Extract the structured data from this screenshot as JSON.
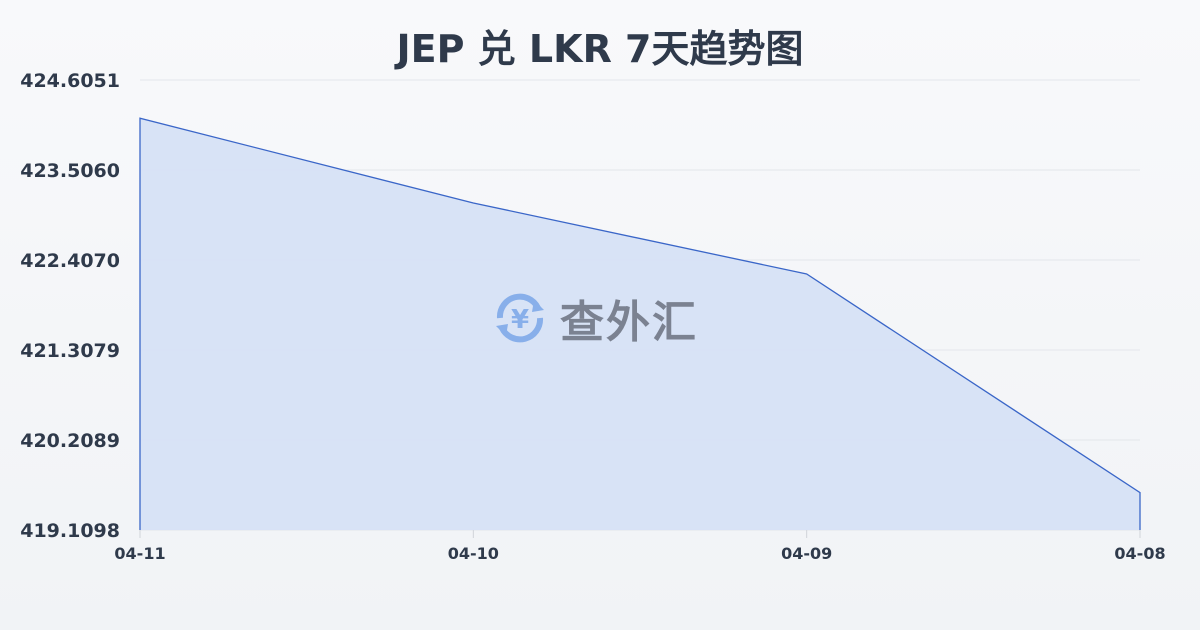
{
  "chart_data": {
    "type": "area",
    "title": "JEP 兑 LKR 7天趋势图",
    "categories": [
      "04-11",
      "04-10",
      "04-09",
      "04-08"
    ],
    "values": [
      424.138,
      423.103,
      422.236,
      419.566
    ],
    "yticks": [
      "424.6051",
      "423.5060",
      "422.4070",
      "421.3079",
      "420.2089",
      "419.1098"
    ],
    "ylim": [
      419.1098,
      424.6051
    ],
    "grid": true,
    "line_color": "#3a66c8",
    "fill_color": "#d6e1f5"
  },
  "watermark": {
    "text": "查外汇",
    "icon": "yen-exchange-icon"
  }
}
